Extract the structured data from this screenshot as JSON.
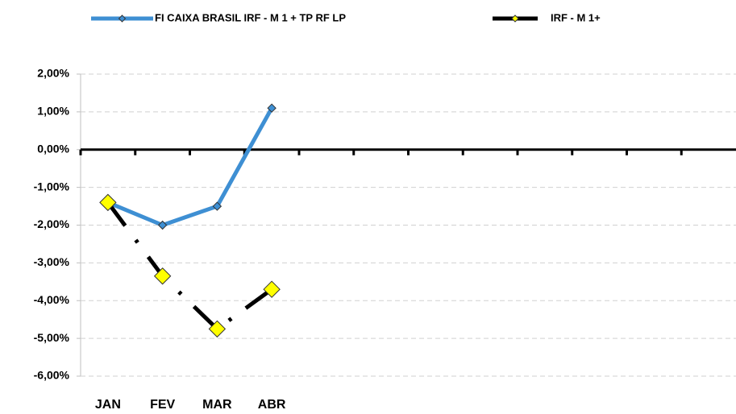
{
  "chart_data": {
    "type": "line",
    "categories": [
      "JAN",
      "FEV",
      "MAR",
      "ABR",
      null,
      null,
      null,
      null,
      null,
      null,
      null,
      null
    ],
    "series": [
      {
        "name": "FI CAIXA BRASIL IRF - M 1 + TP RF LP",
        "color": "#3e8fd3",
        "marker_color": "#3e8fd3",
        "line_style": "solid",
        "values": [
          -1.4,
          -2.0,
          -1.5,
          1.1,
          null,
          null,
          null,
          null,
          null,
          null,
          null,
          null
        ]
      },
      {
        "name": "IRF - M 1+",
        "color": "#000000",
        "marker_color": "#ffff00",
        "line_style": "dashdot",
        "values": [
          -1.4,
          -3.35,
          -4.75,
          -3.7,
          null,
          null,
          null,
          null,
          null,
          null,
          null,
          null
        ]
      }
    ],
    "ylim": [
      -6,
      2
    ],
    "yticks": [
      {
        "value": -6,
        "label": "-6,00%"
      },
      {
        "value": -5,
        "label": "-5,00%"
      },
      {
        "value": -4,
        "label": "-4,00%"
      },
      {
        "value": -3,
        "label": "-3,00%"
      },
      {
        "value": -2,
        "label": "-2,00%"
      },
      {
        "value": -1,
        "label": "-1,00%"
      },
      {
        "value": 0,
        "label": "0,00%"
      },
      {
        "value": 1,
        "label": "1,00%"
      },
      {
        "value": 2,
        "label": "2,00%"
      }
    ],
    "grid": true,
    "legend": "top"
  }
}
